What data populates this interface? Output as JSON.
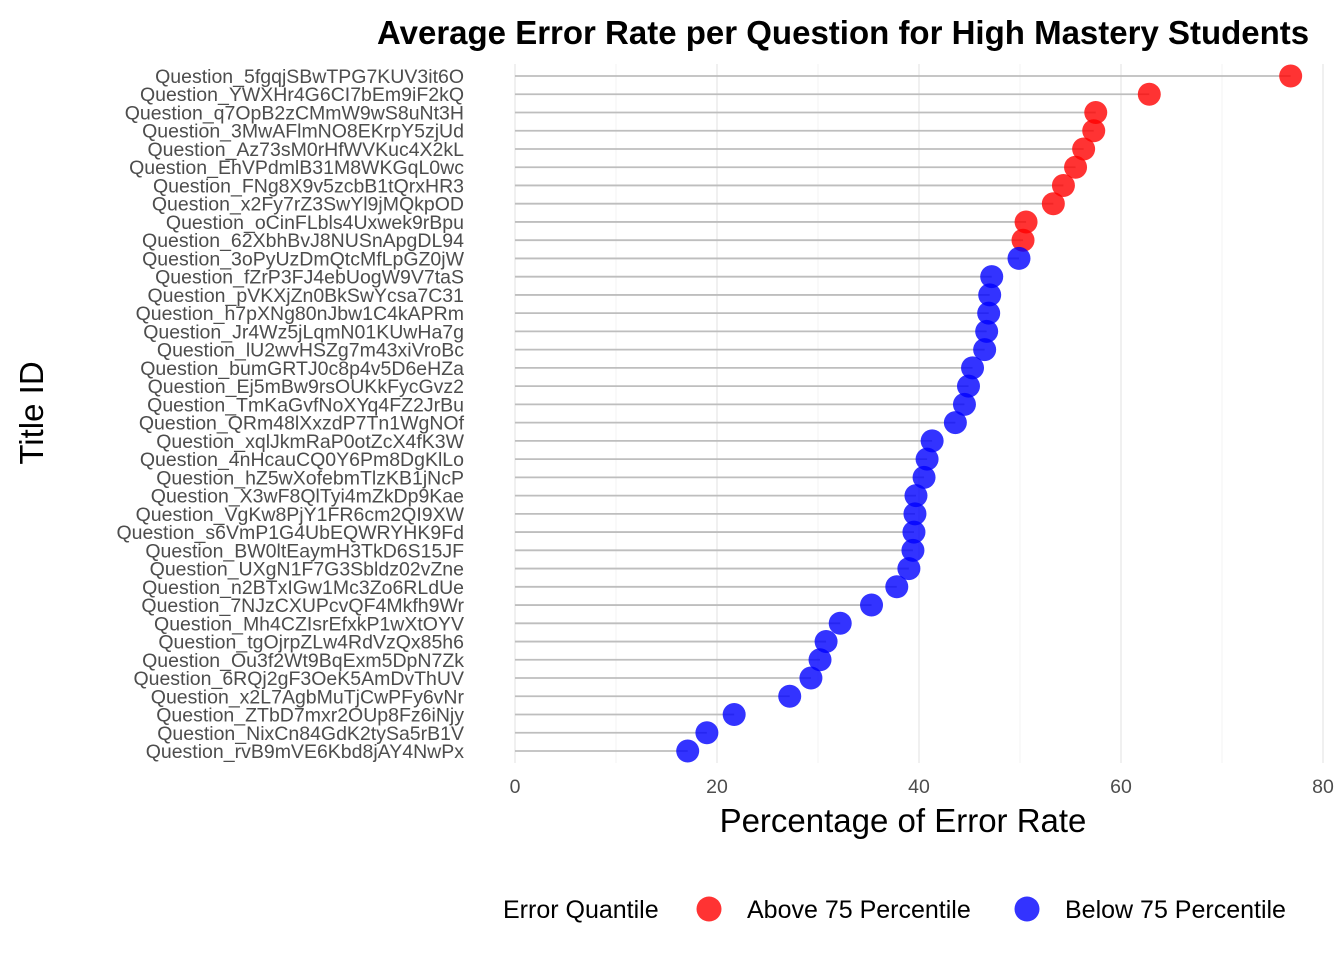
{
  "chart_data": {
    "type": "scatter",
    "title": "Average Error Rate per Question for High Mastery Students",
    "xlabel": "Percentage of Error Rate",
    "ylabel": "Title ID",
    "xlim": [
      0,
      80
    ],
    "xticks": [
      0,
      20,
      40,
      60,
      80
    ],
    "grid": true,
    "legend_position": "bottom",
    "legend_title": "Error Quantile",
    "series": [
      {
        "name": "Above 75 Percentile",
        "color": "#ff0000"
      },
      {
        "name": "Below 75 Percentile",
        "color": "#0000ff"
      }
    ],
    "points": [
      {
        "label": "Question_5fgqjSBwTPG7KUV3it6O",
        "value": 76.8,
        "group": "Above 75 Percentile"
      },
      {
        "label": "Question_YWXHr4G6CI7bEm9iF2kQ",
        "value": 62.8,
        "group": "Above 75 Percentile"
      },
      {
        "label": "Question_q7OpB2zCMmW9wS8uNt3H",
        "value": 57.5,
        "group": "Above 75 Percentile"
      },
      {
        "label": "Question_3MwAFlmNO8EKrpY5zjUd",
        "value": 57.3,
        "group": "Above 75 Percentile"
      },
      {
        "label": "Question_Az73sM0rHfWVKuc4X2kL",
        "value": 56.3,
        "group": "Above 75 Percentile"
      },
      {
        "label": "Question_EhVPdmlB31M8WKGqL0wc",
        "value": 55.5,
        "group": "Above 75 Percentile"
      },
      {
        "label": "Question_FNg8X9v5zcbB1tQrxHR3",
        "value": 54.3,
        "group": "Above 75 Percentile"
      },
      {
        "label": "Question_x2Fy7rZ3SwYl9jMQkpOD",
        "value": 53.3,
        "group": "Above 75 Percentile"
      },
      {
        "label": "Question_oCinFLbls4Uxwek9rBpu",
        "value": 50.6,
        "group": "Above 75 Percentile"
      },
      {
        "label": "Question_62XbhBvJ8NUSnApgDL94",
        "value": 50.3,
        "group": "Above 75 Percentile"
      },
      {
        "label": "Question_3oPyUzDmQtcMfLpGZ0jW",
        "value": 49.9,
        "group": "Below 75 Percentile"
      },
      {
        "label": "Question_fZrP3FJ4ebUogW9V7taS",
        "value": 47.2,
        "group": "Below 75 Percentile"
      },
      {
        "label": "Question_pVKXjZn0BkSwYcsa7C31",
        "value": 47.0,
        "group": "Below 75 Percentile"
      },
      {
        "label": "Question_h7pXNg80nJbw1C4kAPRm",
        "value": 46.9,
        "group": "Below 75 Percentile"
      },
      {
        "label": "Question_Jr4Wz5jLqmN01KUwHa7g",
        "value": 46.7,
        "group": "Below 75 Percentile"
      },
      {
        "label": "Question_lU2wvHSZg7m43xiVroBc",
        "value": 46.5,
        "group": "Below 75 Percentile"
      },
      {
        "label": "Question_bumGRTJ0c8p4v5D6eHZa",
        "value": 45.3,
        "group": "Below 75 Percentile"
      },
      {
        "label": "Question_Ej5mBw9rsOUKkFycGvz2",
        "value": 44.9,
        "group": "Below 75 Percentile"
      },
      {
        "label": "Question_TmKaGvfNoXYq4FZ2JrBu",
        "value": 44.5,
        "group": "Below 75 Percentile"
      },
      {
        "label": "Question_QRm48lXxzdP7Tn1WgNOf",
        "value": 43.6,
        "group": "Below 75 Percentile"
      },
      {
        "label": "Question_xqlJkmRaP0otZcX4fK3W",
        "value": 41.3,
        "group": "Below 75 Percentile"
      },
      {
        "label": "Question_4nHcauCQ0Y6Pm8DgKlLo",
        "value": 40.8,
        "group": "Below 75 Percentile"
      },
      {
        "label": "Question_hZ5wXofebmTlzKB1jNcP",
        "value": 40.5,
        "group": "Below 75 Percentile"
      },
      {
        "label": "Question_X3wF8QlTyi4mZkDp9Kae",
        "value": 39.7,
        "group": "Below 75 Percentile"
      },
      {
        "label": "Question_VgKw8PjY1FR6cm2QI9XW",
        "value": 39.6,
        "group": "Below 75 Percentile"
      },
      {
        "label": "Question_s6VmP1G4UbEQWRYHK9Fd",
        "value": 39.5,
        "group": "Below 75 Percentile"
      },
      {
        "label": "Question_BW0ltEaymH3TkD6S15JF",
        "value": 39.4,
        "group": "Below 75 Percentile"
      },
      {
        "label": "Question_UXgN1F7G3Sbldz02vZne",
        "value": 39.0,
        "group": "Below 75 Percentile"
      },
      {
        "label": "Question_n2BTxIGw1Mc3Zo6RLdUe",
        "value": 37.8,
        "group": "Below 75 Percentile"
      },
      {
        "label": "Question_7NJzCXUPcvQF4Mkfh9Wr",
        "value": 35.3,
        "group": "Below 75 Percentile"
      },
      {
        "label": "Question_Mh4CZIsrEfxkP1wXtOYV",
        "value": 32.2,
        "group": "Below 75 Percentile"
      },
      {
        "label": "Question_tgOjrpZLw4RdVzQx85h6",
        "value": 30.8,
        "group": "Below 75 Percentile"
      },
      {
        "label": "Question_Ou3f2Wt9BqExm5DpN7Zk",
        "value": 30.2,
        "group": "Below 75 Percentile"
      },
      {
        "label": "Question_6RQj2gF3OeK5AmDvThUV",
        "value": 29.3,
        "group": "Below 75 Percentile"
      },
      {
        "label": "Question_x2L7AgbMuTjCwPFy6vNr",
        "value": 27.2,
        "group": "Below 75 Percentile"
      },
      {
        "label": "Question_ZTbD7mxr2OUp8Fz6iNjy",
        "value": 21.7,
        "group": "Below 75 Percentile"
      },
      {
        "label": "Question_NixCn84GdK2tySa5rB1V",
        "value": 19.0,
        "group": "Below 75 Percentile"
      },
      {
        "label": "Question_rvB9mVE6Kbd8jAY4NwPx",
        "value": 17.1,
        "group": "Below 75 Percentile"
      }
    ]
  }
}
